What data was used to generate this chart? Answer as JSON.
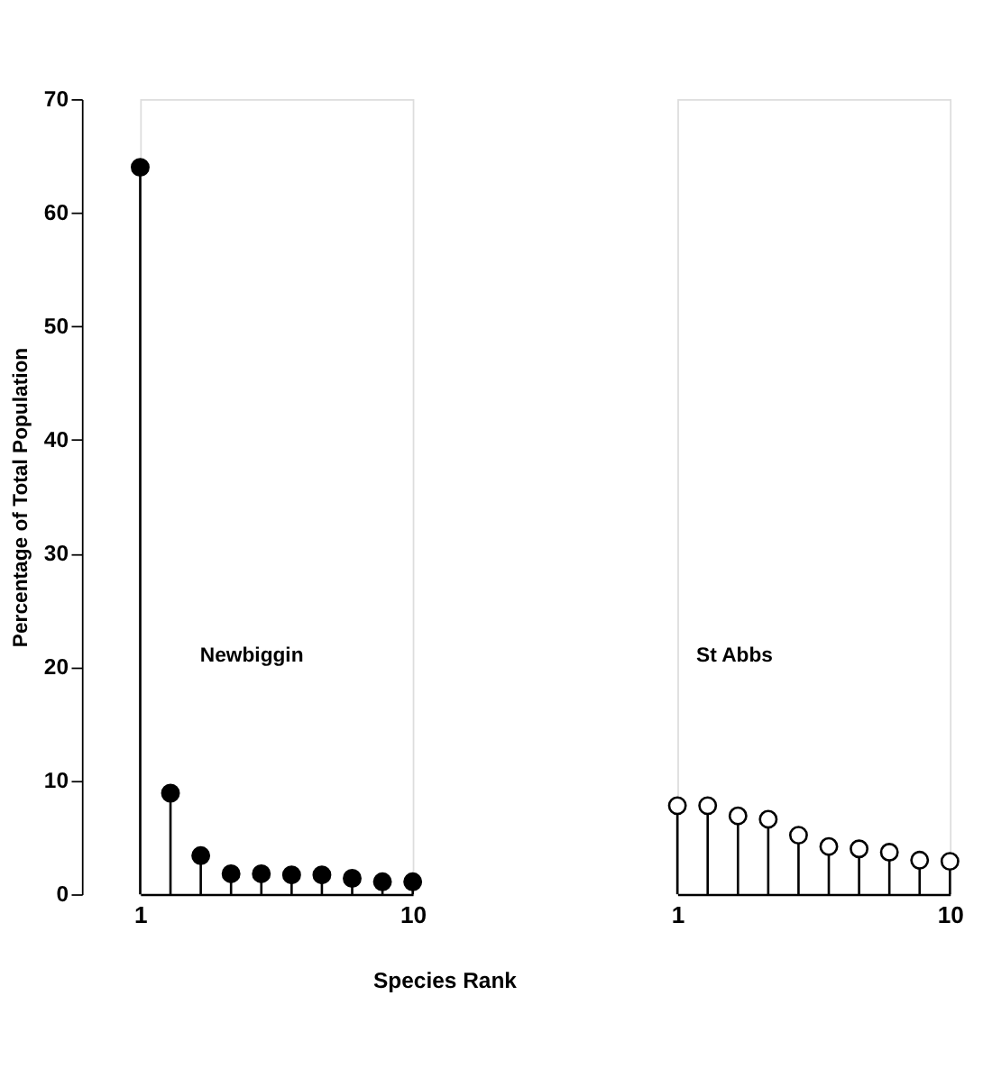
{
  "chart_data": [
    {
      "type": "lollipop",
      "ylabel": "Percentage of Total Population",
      "xlabel": "Species Rank",
      "x": [
        1,
        2,
        3,
        4,
        5,
        6,
        7,
        8,
        9,
        10
      ],
      "xlim": [
        1,
        10
      ],
      "xticks": [
        1,
        10
      ],
      "ylim": [
        0,
        70
      ],
      "yticks": [
        0,
        10,
        20,
        30,
        40,
        50,
        60,
        70
      ],
      "marker": "circle",
      "grid": false,
      "series": [
        {
          "name": "Newbiggin",
          "color": "#000000",
          "values": [
            64,
            8.9,
            3.4,
            1.8,
            1.8,
            1.7,
            1.7,
            1.4,
            1.1,
            1.1
          ]
        }
      ]
    },
    {
      "type": "lollipop",
      "x": [
        1,
        2,
        3,
        4,
        5,
        6,
        7,
        8,
        9,
        10
      ],
      "xlim": [
        1,
        10
      ],
      "xticks": [
        1,
        10
      ],
      "ylim": [
        0,
        70
      ],
      "tick_labels": "x",
      "marker": "circle",
      "grid": false,
      "series": [
        {
          "name": "St Abbs",
          "color": "#000000",
          "values": [
            7.8,
            7.8,
            6.9,
            6.6,
            5.2,
            4.2,
            4.0,
            3.7,
            3.0,
            2.9
          ]
        }
      ]
    }
  ]
}
